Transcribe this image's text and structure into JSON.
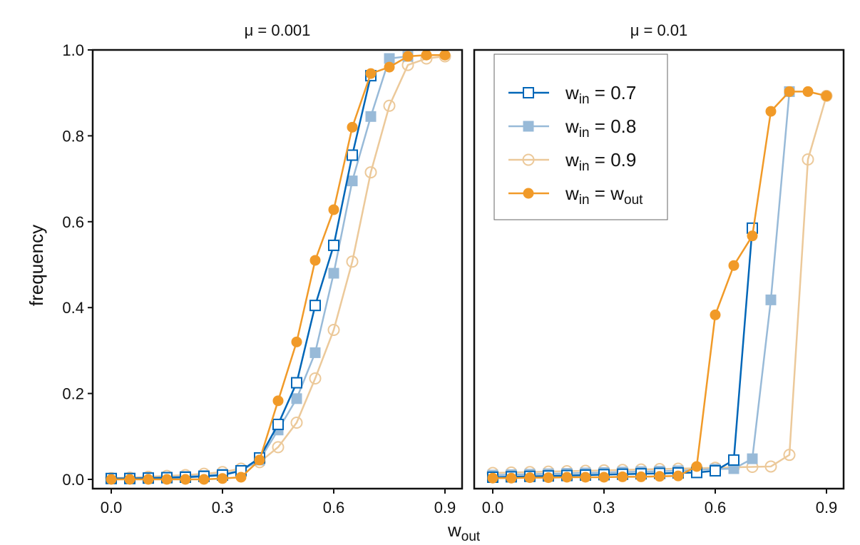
{
  "chart_data": [
    {
      "type": "line",
      "title": "μ = 0.001",
      "xlabel": "w_out",
      "ylabel": "frequency",
      "xlim": [
        -0.05,
        0.95
      ],
      "ylim": [
        -0.02,
        1.0
      ],
      "xticks": [
        "0.0",
        "0.3",
        "0.6",
        "0.9"
      ],
      "yticks": [
        "0.0",
        "0.2",
        "0.4",
        "0.6",
        "0.8",
        "1.0"
      ],
      "series": [
        {
          "name": "w_in = 0.7",
          "x": [
            0,
            0.05,
            0.1,
            0.15,
            0.2,
            0.25,
            0.3,
            0.35,
            0.4,
            0.45,
            0.5,
            0.55,
            0.6,
            0.65,
            0.7
          ],
          "values": [
            0.002,
            0.002,
            0.003,
            0.004,
            0.005,
            0.007,
            0.01,
            0.02,
            0.05,
            0.128,
            0.225,
            0.405,
            0.545,
            0.755,
            0.94
          ]
        },
        {
          "name": "w_in = 0.8",
          "x": [
            0,
            0.05,
            0.1,
            0.15,
            0.2,
            0.25,
            0.3,
            0.35,
            0.4,
            0.45,
            0.5,
            0.55,
            0.6,
            0.65,
            0.7,
            0.75,
            0.8
          ],
          "values": [
            0.002,
            0.003,
            0.004,
            0.005,
            0.007,
            0.009,
            0.012,
            0.02,
            0.045,
            0.115,
            0.188,
            0.295,
            0.48,
            0.695,
            0.845,
            0.98,
            0.985
          ]
        },
        {
          "name": "w_in = 0.9",
          "x": [
            0,
            0.05,
            0.1,
            0.15,
            0.2,
            0.25,
            0.3,
            0.35,
            0.4,
            0.45,
            0.5,
            0.55,
            0.6,
            0.65,
            0.7,
            0.75,
            0.8,
            0.85,
            0.9
          ],
          "values": [
            0.003,
            0.004,
            0.006,
            0.008,
            0.01,
            0.013,
            0.017,
            0.025,
            0.04,
            0.075,
            0.132,
            0.235,
            0.348,
            0.507,
            0.715,
            0.87,
            0.965,
            0.98,
            0.985
          ]
        },
        {
          "name": "w_in = w_out",
          "x": [
            0,
            0.05,
            0.1,
            0.15,
            0.2,
            0.25,
            0.3,
            0.35,
            0.4,
            0.45,
            0.5,
            0.55,
            0.6,
            0.65,
            0.7,
            0.75,
            0.8,
            0.85,
            0.9
          ],
          "values": [
            0.0,
            0.0,
            0.0,
            0.0,
            0.0,
            0.0,
            0.002,
            0.005,
            0.045,
            0.183,
            0.32,
            0.51,
            0.628,
            0.82,
            0.945,
            0.96,
            0.985,
            0.988,
            0.988
          ]
        }
      ]
    },
    {
      "type": "line",
      "title": "μ = 0.01",
      "xlabel": "w_out",
      "ylabel": "frequency",
      "xlim": [
        -0.05,
        0.95
      ],
      "ylim": [
        -0.02,
        1.0
      ],
      "xticks": [
        "0.0",
        "0.3",
        "0.6",
        "0.9"
      ],
      "legend": {
        "placement": "top-left",
        "entries": [
          "w_in = 0.7",
          "w_in = 0.8",
          "w_in = 0.9",
          "w_in = w_out"
        ]
      },
      "series": [
        {
          "name": "w_in = 0.7",
          "x": [
            0,
            0.05,
            0.1,
            0.15,
            0.2,
            0.25,
            0.3,
            0.35,
            0.4,
            0.45,
            0.5,
            0.55,
            0.6,
            0.65,
            0.7
          ],
          "values": [
            0.005,
            0.006,
            0.007,
            0.008,
            0.009,
            0.01,
            0.011,
            0.012,
            0.013,
            0.014,
            0.015,
            0.016,
            0.02,
            0.045,
            0.585
          ]
        },
        {
          "name": "w_in = 0.8",
          "x": [
            0,
            0.05,
            0.1,
            0.15,
            0.2,
            0.25,
            0.3,
            0.35,
            0.4,
            0.45,
            0.5,
            0.55,
            0.6,
            0.65,
            0.7,
            0.75,
            0.8
          ],
          "values": [
            0.01,
            0.011,
            0.012,
            0.013,
            0.014,
            0.015,
            0.016,
            0.017,
            0.018,
            0.019,
            0.02,
            0.022,
            0.024,
            0.025,
            0.048,
            0.418,
            0.903
          ]
        },
        {
          "name": "w_in = 0.9",
          "x": [
            0,
            0.05,
            0.1,
            0.15,
            0.2,
            0.25,
            0.3,
            0.35,
            0.4,
            0.45,
            0.5,
            0.55,
            0.6,
            0.65,
            0.7,
            0.75,
            0.8,
            0.85,
            0.9
          ],
          "values": [
            0.015,
            0.016,
            0.017,
            0.018,
            0.019,
            0.02,
            0.021,
            0.022,
            0.023,
            0.024,
            0.025,
            0.026,
            0.027,
            0.028,
            0.029,
            0.03,
            0.057,
            0.745,
            0.893
          ]
        },
        {
          "name": "w_in = w_out",
          "x": [
            0,
            0.05,
            0.1,
            0.15,
            0.2,
            0.25,
            0.3,
            0.35,
            0.4,
            0.45,
            0.5,
            0.55,
            0.6,
            0.65,
            0.7,
            0.75,
            0.8,
            0.85,
            0.9
          ],
          "values": [
            0.003,
            0.003,
            0.004,
            0.004,
            0.005,
            0.005,
            0.005,
            0.006,
            0.006,
            0.007,
            0.008,
            0.03,
            0.383,
            0.498,
            0.567,
            0.857,
            0.903,
            0.903,
            0.893
          ]
        }
      ]
    }
  ],
  "labels": {
    "x_main": "w",
    "x_sub": "out",
    "y": "frequency",
    "leg_w": "w",
    "leg_in": "in",
    "leg_out": "out",
    "leg_vals": [
      "= 0.7",
      "= 0.8",
      "= 0.9",
      "="
    ]
  },
  "colors": {
    "s0": "#0066b8",
    "s1": "#98bad8",
    "s2": "#ecc99a",
    "s3": "#f19a28"
  }
}
